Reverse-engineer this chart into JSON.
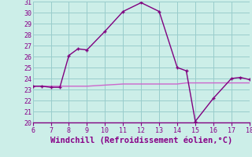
{
  "x": [
    6,
    6.5,
    7,
    7.5,
    8,
    8.5,
    9,
    10,
    11,
    12,
    13,
    14,
    14.5,
    15,
    16,
    17,
    17.5,
    18
  ],
  "y_main": [
    23.3,
    23.3,
    23.2,
    23.2,
    26.1,
    26.7,
    26.6,
    28.3,
    30.1,
    30.9,
    30.1,
    25.0,
    24.7,
    20.1,
    22.2,
    24.0,
    24.1,
    23.9
  ],
  "y_flat": [
    23.3,
    23.3,
    23.3,
    23.3,
    23.3,
    23.3,
    23.3,
    23.4,
    23.5,
    23.5,
    23.5,
    23.5,
    23.6,
    23.6,
    23.6,
    23.6,
    23.6,
    23.6
  ],
  "line_color": "#800080",
  "flat_color": "#cc66cc",
  "bg_color": "#cceee8",
  "grid_color": "#99cccc",
  "tick_color": "#880088",
  "label_color": "#880088",
  "xlabel": "Windchill (Refroidissement éolien,°C)",
  "xlim": [
    6,
    18
  ],
  "ylim": [
    20,
    31
  ],
  "xticks": [
    6,
    7,
    8,
    9,
    10,
    11,
    12,
    13,
    14,
    15,
    16,
    17,
    18
  ],
  "yticks": [
    20,
    21,
    22,
    23,
    24,
    25,
    26,
    27,
    28,
    29,
    30,
    31
  ]
}
